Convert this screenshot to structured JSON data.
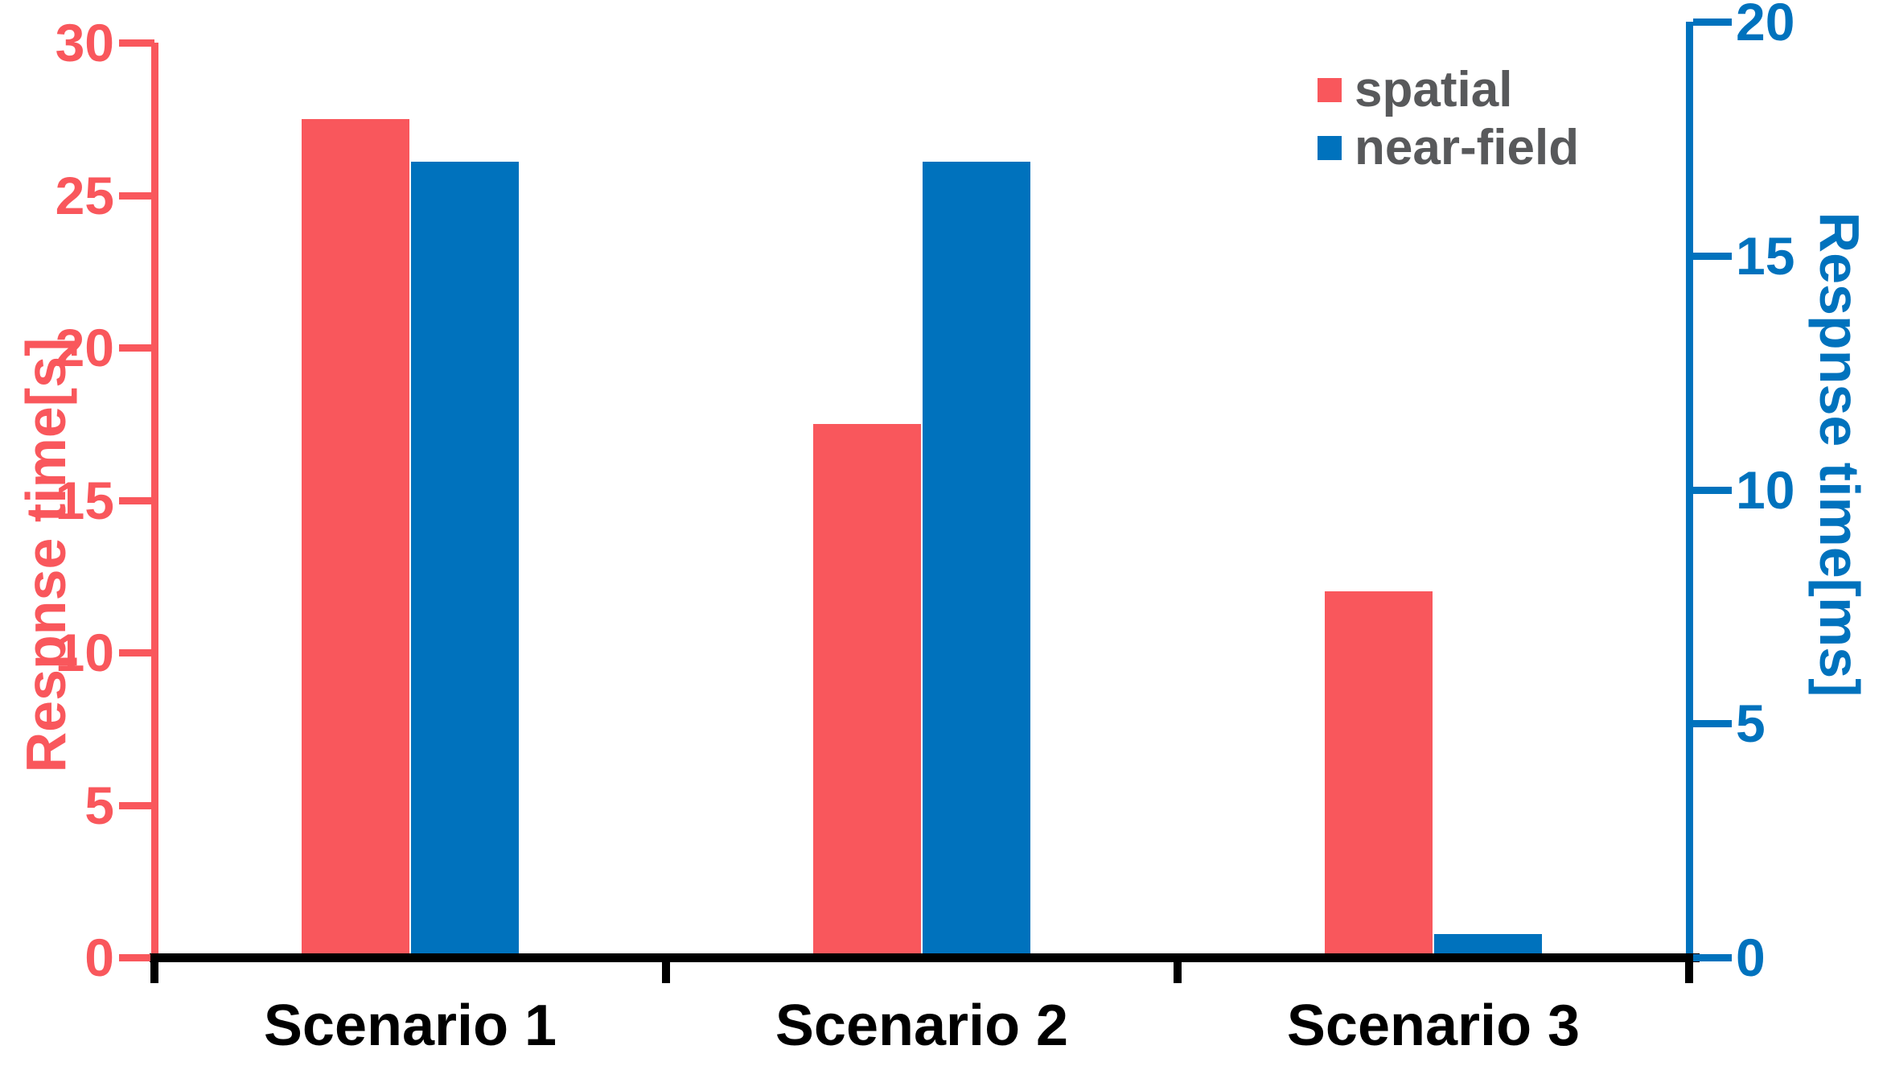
{
  "chart_data": {
    "type": "bar",
    "title": "",
    "categories": [
      "Scenario 1",
      "Scenario 2",
      "Scenario 3"
    ],
    "series": [
      {
        "name": "spatial",
        "axis": "left",
        "color": "#F9575C",
        "values": [
          27.5,
          17.5,
          12
        ]
      },
      {
        "name": "near-field",
        "axis": "right",
        "color": "#0072BD",
        "values": [
          17,
          17,
          0.5
        ]
      }
    ],
    "left_axis": {
      "label": "Respnse time[s]",
      "min": 0,
      "max": 30,
      "ticks": [
        0,
        5,
        10,
        15,
        20,
        25,
        30
      ],
      "color": "#F9575C"
    },
    "right_axis": {
      "label": "Respnse time[ms]",
      "min": 0,
      "max": 20,
      "ticks": [
        0,
        5,
        10,
        15,
        20
      ],
      "color": "#0072BD"
    },
    "legend": {
      "position": "top-right",
      "text_color": "#58595B",
      "entries": [
        {
          "label": "spatial",
          "color": "#F9575C"
        },
        {
          "label": "near-field",
          "color": "#0072BD"
        }
      ]
    },
    "x_label_color": "#000000",
    "axis_line_color_bottom": "#000000",
    "grid": false
  }
}
